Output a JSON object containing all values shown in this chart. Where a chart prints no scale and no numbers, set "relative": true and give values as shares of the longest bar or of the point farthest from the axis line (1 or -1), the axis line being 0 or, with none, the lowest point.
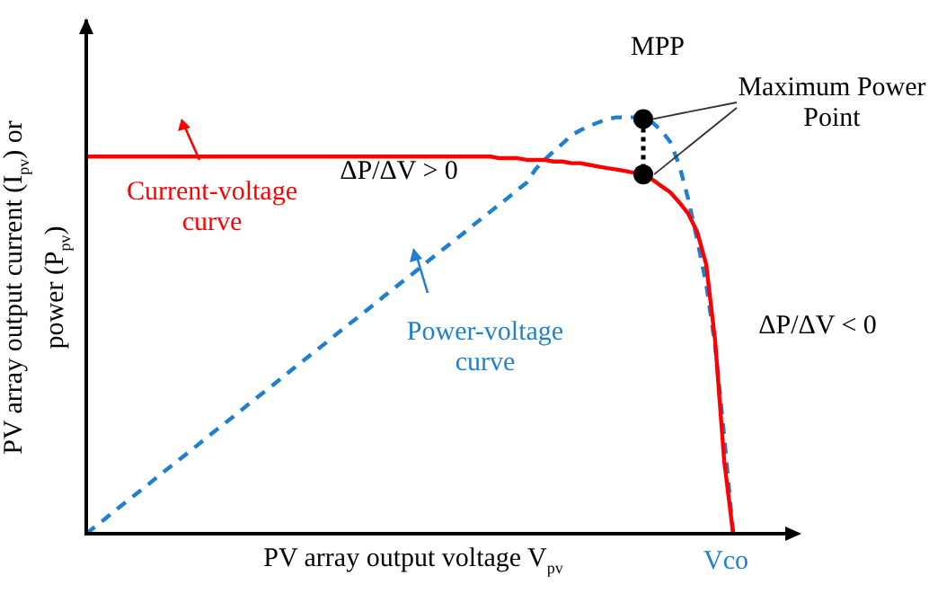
{
  "chart_data": {
    "type": "line",
    "relative": true,
    "xlabel": "PV array output voltage V$_{pv}$",
    "ylabel": "PV array output current (I$_{pv}$) or power (P$_{pv}$)",
    "categories": [
      null,
      null,
      null,
      null,
      null,
      null,
      null,
      null,
      null,
      null,
      null,
      null,
      null,
      null,
      null,
      null,
      null,
      null,
      null,
      null,
      null,
      null,
      null,
      null,
      null,
      null,
      null,
      null,
      null,
      null,
      null,
      null,
      null,
      null,
      null,
      null,
      null,
      null,
      null,
      null,
      null,
      null,
      null,
      null,
      null,
      null,
      null,
      null,
      null,
      null,
      null,
      null,
      null,
      null,
      null,
      null,
      null,
      null,
      null,
      null,
      null,
      null,
      null,
      null,
      null,
      null,
      null,
      null,
      null,
      null,
      null,
      null,
      null
    ],
    "series": [
      {
        "color": "#ff0000",
        "line_style": "solid",
        "values": [
          0.906,
          0.906,
          0.906,
          0.906,
          0.906,
          0.906,
          0.906,
          0.906,
          0.906,
          0.906,
          0.906,
          0.906,
          0.906,
          0.906,
          0.906,
          0.906,
          0.906,
          0.906,
          0.906,
          0.906,
          0.906,
          0.906,
          0.906,
          0.906,
          0.906,
          0.906,
          0.906,
          0.906,
          0.906,
          0.906,
          0.906,
          0.906,
          0.906,
          0.906,
          0.906,
          0.906,
          0.906,
          0.906,
          0.906,
          0.906,
          0.906,
          0.906,
          0.906,
          0.906,
          0.906,
          0.906,
          0.902,
          0.902,
          0.902,
          0.898,
          0.898,
          0.898,
          0.894,
          0.894,
          0.89,
          0.89,
          0.886,
          0.882,
          0.878,
          0.875,
          0.871,
          0.867,
          0.863,
          0.851,
          0.835,
          0.82,
          0.796,
          0.769,
          0.725,
          0.647,
          0.463,
          0.176,
          0
        ]
      },
      {
        "color": "#1f7fd0",
        "line_style": "dashed",
        "values": [
          0,
          0.017,
          0.034,
          0.052,
          0.069,
          0.086,
          0.103,
          0.12,
          0.138,
          0.155,
          0.172,
          0.189,
          0.206,
          0.224,
          0.241,
          0.258,
          0.275,
          0.292,
          0.31,
          0.327,
          0.344,
          0.361,
          0.378,
          0.396,
          0.413,
          0.43,
          0.447,
          0.464,
          0.482,
          0.499,
          0.516,
          0.533,
          0.55,
          0.568,
          0.585,
          0.602,
          0.619,
          0.636,
          0.654,
          0.671,
          0.688,
          0.705,
          0.722,
          0.74,
          0.757,
          0.774,
          0.791,
          0.808,
          0.826,
          0.843,
          0.875,
          0.898,
          0.918,
          0.937,
          0.957,
          0.969,
          0.98,
          0.988,
          0.996,
          1,
          1,
          1,
          0.996,
          0.988,
          0.969,
          0.941,
          0.886,
          0.804,
          0.706,
          0.6,
          0.451,
          0.235,
          0
        ]
      }
    ],
    "annotations": [
      "MPP",
      "Maximum Power Point",
      "ΔP/ΔV > 0",
      "ΔP/ΔV < 0",
      "Vco",
      "Current-voltage curve",
      "Power-voltage curve"
    ]
  }
}
